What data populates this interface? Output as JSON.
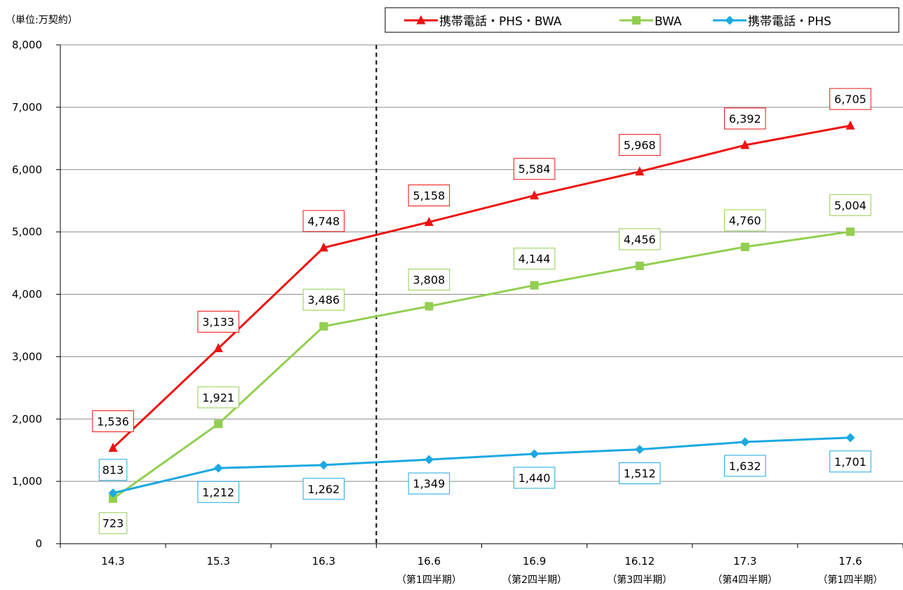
{
  "chart_data": {
    "type": "line",
    "unit_label": "（単位:万契約）",
    "categories": [
      "14.3",
      "15.3",
      "16.3",
      "16.6",
      "16.9",
      "16.12",
      "17.3",
      "17.6"
    ],
    "category_sublabels": [
      "",
      "",
      "",
      "（第1四半期）",
      "（第2四半期）",
      "（第3四半期）",
      "（第4四半期）",
      "（第1四半期）"
    ],
    "ylim": [
      0,
      8000
    ],
    "yticks": [
      0,
      1000,
      2000,
      3000,
      4000,
      5000,
      6000,
      7000,
      8000
    ],
    "ytick_labels": [
      "0",
      "1,000",
      "2,000",
      "3,000",
      "4,000",
      "5,000",
      "6,000",
      "7,000",
      "8,000"
    ],
    "grid": true,
    "divider_after_category_index": 2,
    "legend_position": "top-right",
    "series": [
      {
        "name": "携帯電話・PHS・BWA",
        "color": "#ee1111",
        "marker": "triangle",
        "values": [
          1536,
          3133,
          4748,
          5158,
          5584,
          5968,
          6392,
          6705
        ],
        "labels": [
          "1,536",
          "3,133",
          "4,748",
          "5,158",
          "5,584",
          "5,968",
          "6,392",
          "6,705"
        ]
      },
      {
        "name": "BWA",
        "color": "#92cf50",
        "marker": "square",
        "values": [
          723,
          1921,
          3486,
          3808,
          4144,
          4456,
          4760,
          5004
        ],
        "labels": [
          "723",
          "1,921",
          "3,486",
          "3,808",
          "4,144",
          "4,456",
          "4,760",
          "5,004"
        ]
      },
      {
        "name": "携帯電話・PHS",
        "color": "#1ba9e1",
        "marker": "diamond",
        "values": [
          813,
          1212,
          1262,
          1349,
          1440,
          1512,
          1632,
          1701
        ],
        "labels": [
          "813",
          "1,212",
          "1,262",
          "1,349",
          "1,440",
          "1,512",
          "1,632",
          "1,701"
        ]
      }
    ]
  }
}
